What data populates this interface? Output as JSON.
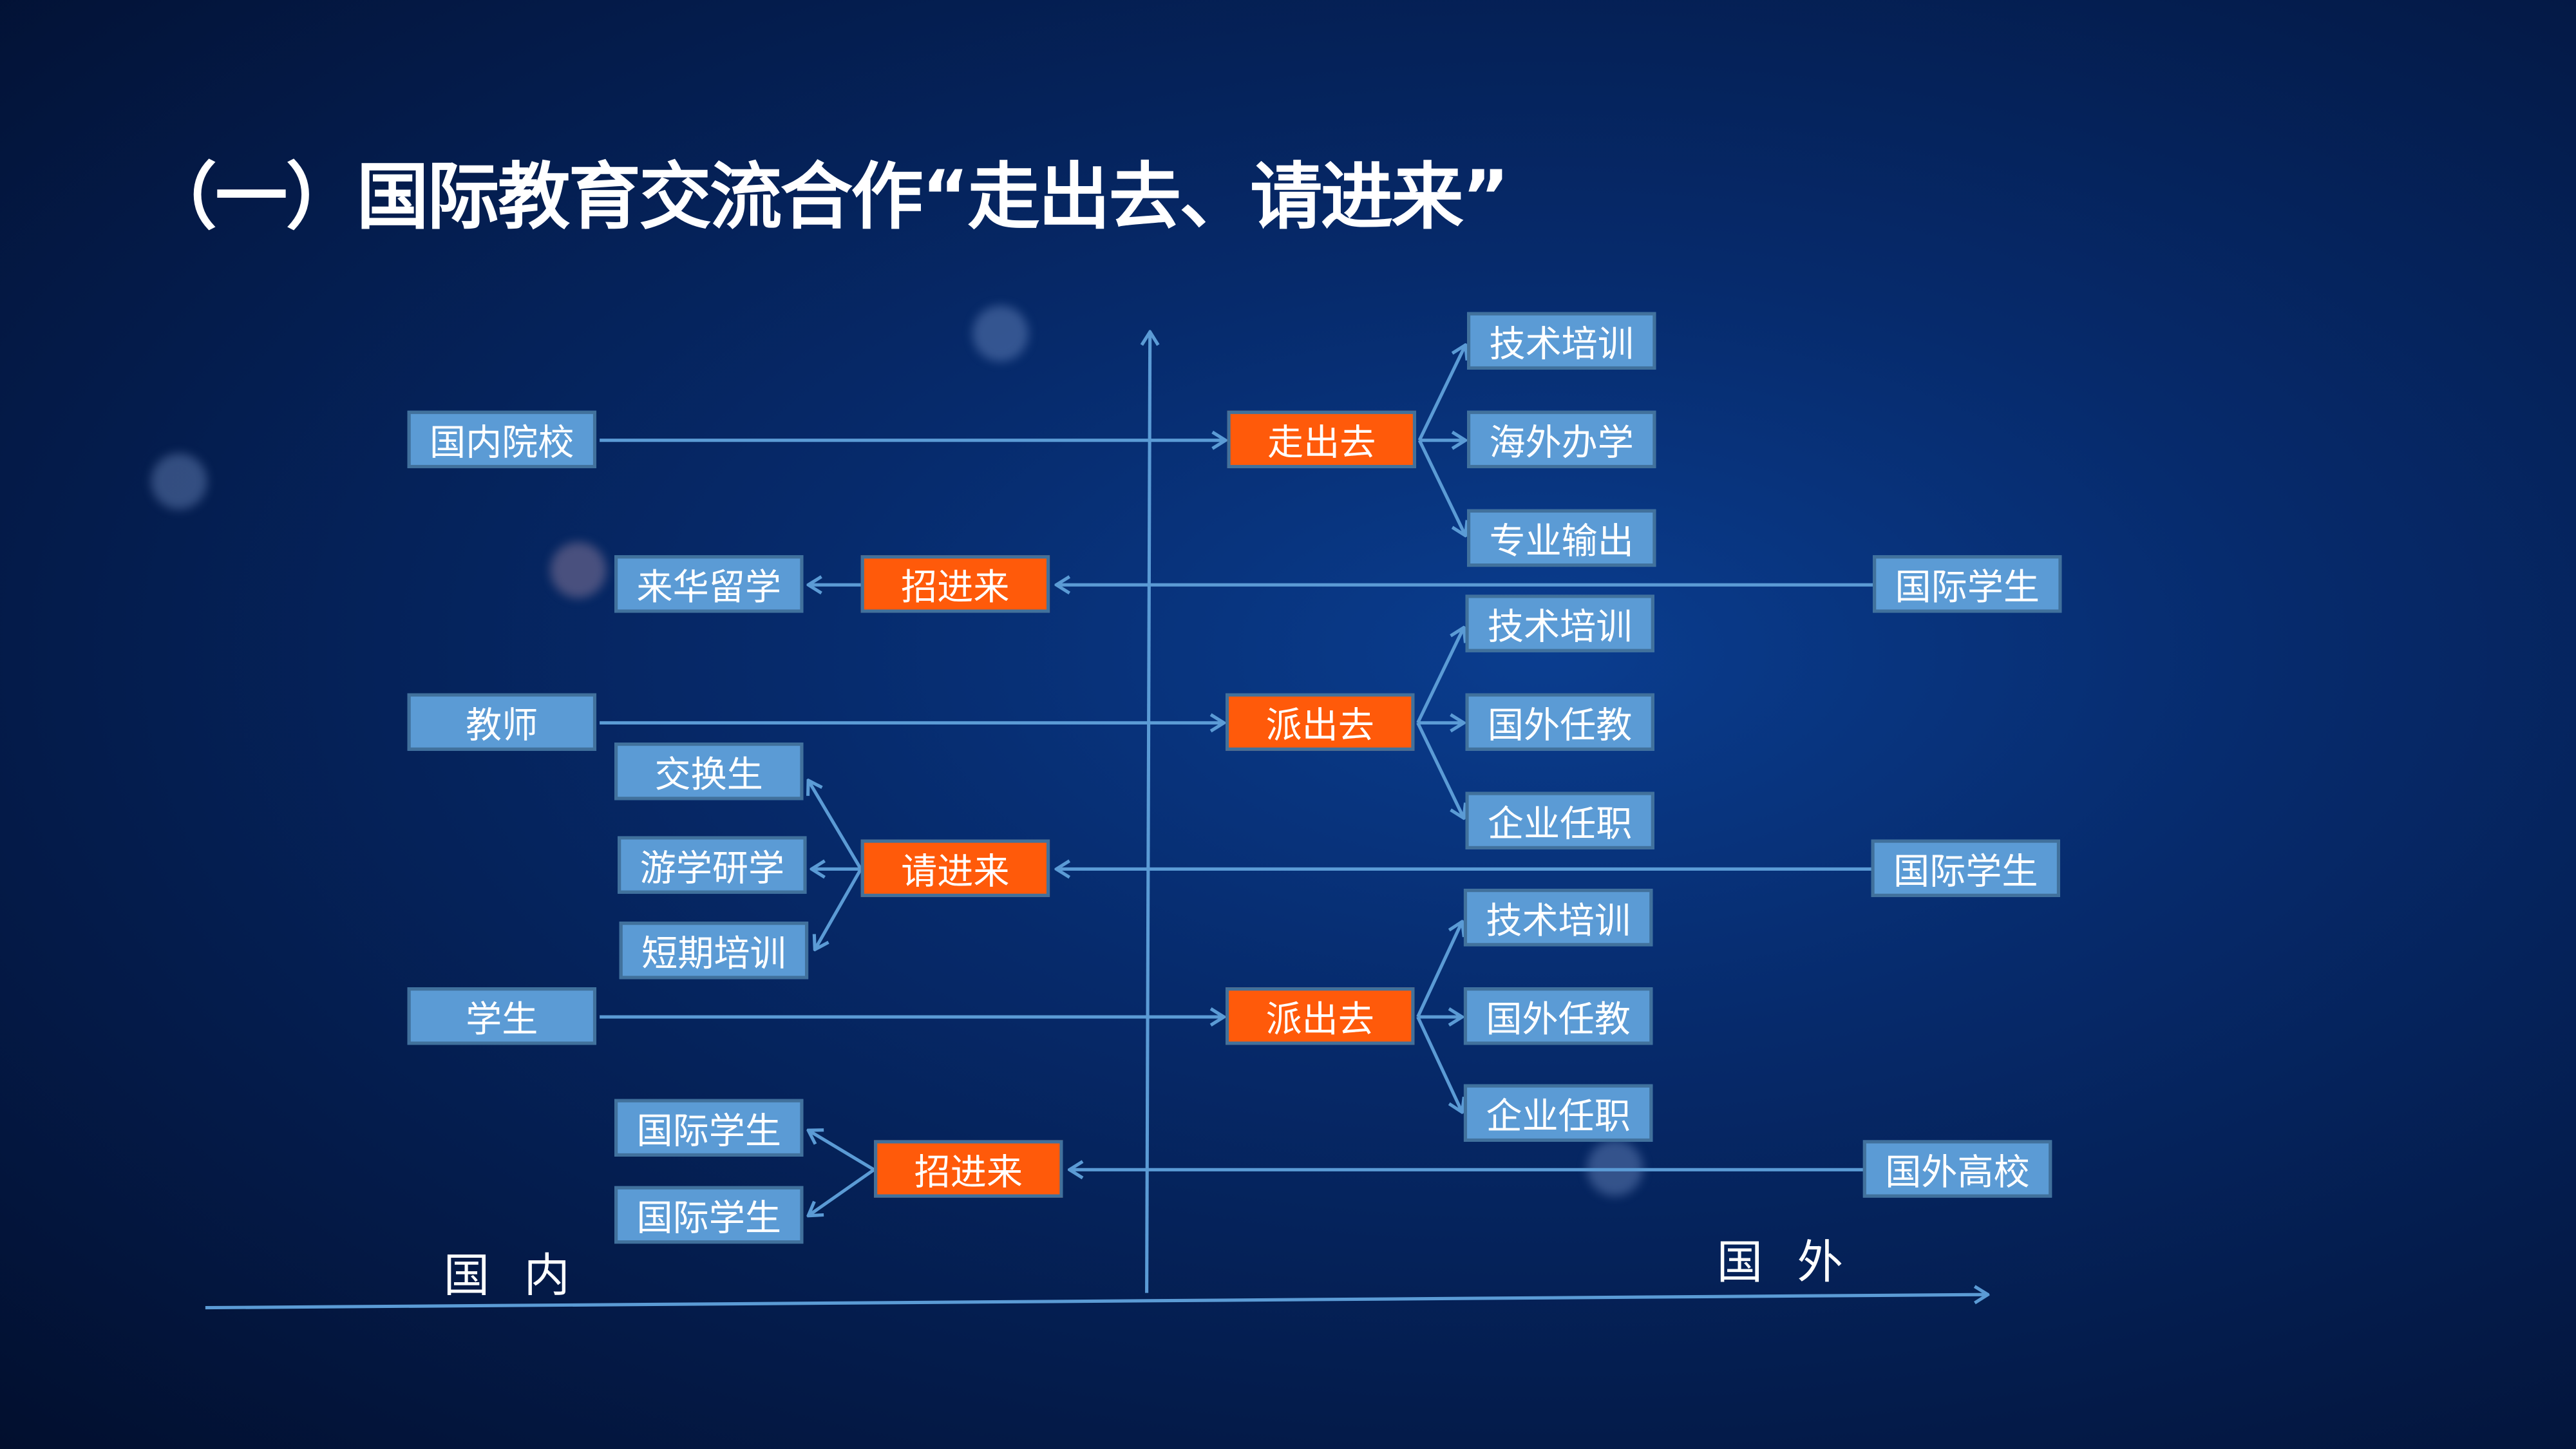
{
  "title": "（一）国际教育交流合作“走出去、请进来”",
  "axis_labels": {
    "domestic": "国 内",
    "foreign": "国 外"
  },
  "colors": {
    "blue_box": "#5b9bd5",
    "orange_box": "#ff5a0a",
    "line": "#5b9bd5"
  },
  "left": {
    "schools": "国内院校",
    "teachers": "教师",
    "students": "学生"
  },
  "sub": {
    "study_in_china": "来华留学",
    "exchange": "交换生",
    "study_tour": "游学研学",
    "short_training": "短期培训",
    "intl_student_1": "国际学生",
    "intl_student_2": "国际学生"
  },
  "center": {
    "go_out": "走出去",
    "recruit_1": "招进来",
    "send_out_1": "派出去",
    "invite_in": "请进来",
    "send_out_2": "派出去",
    "recruit_2": "招进来"
  },
  "right": {
    "group1": [
      "技术培训",
      "海外办学",
      "专业输出"
    ],
    "group2": [
      "技术培训",
      "国外任教",
      "企业任职"
    ],
    "group3": [
      "技术培训",
      "国外任教",
      "企业任职"
    ]
  },
  "far_right": {
    "intl_student_1": "国际学生",
    "intl_student_2": "国际学生",
    "foreign_univ": "国外高校"
  }
}
